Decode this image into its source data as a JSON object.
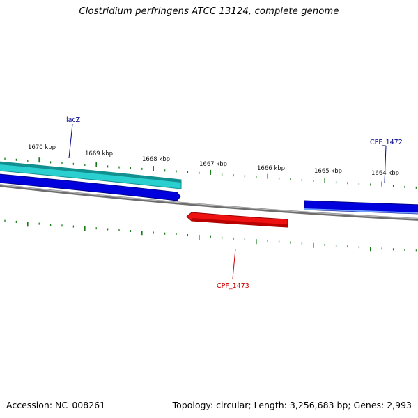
{
  "title": "Clostridium perfringens ATCC 13124, complete genome",
  "footer": {
    "accession": "Accession: NC_008261",
    "summary": "Topology: circular; Length: 3,256,683 bp; Genes: 2,993"
  },
  "scale": {
    "tick_color": "#1a7a1a",
    "labels": [
      "1670 kbp",
      "1669 kbp",
      "1668 kbp",
      "1667 kbp",
      "1666 kbp",
      "1665 kbp",
      "1664 kbp"
    ]
  },
  "genes": [
    {
      "name": "lacZ",
      "strand": "forward",
      "label_color": "#00008b",
      "fill": "#2ad0d0",
      "edge": "#128f8f"
    },
    {
      "name": "CPF_1472",
      "strand": "forward",
      "label_color": "#00008b",
      "fill": "#0000dd",
      "edge": "#000088"
    },
    {
      "name": "CPF_1473",
      "strand": "reverse",
      "label_color": "#cc0000",
      "fill": "#ee1111",
      "edge": "#990000"
    }
  ],
  "colors": {
    "backbone": "#888888",
    "forward_gene": "#0000dd",
    "lacz_gene": "#2ad0d0",
    "reverse_gene": "#ee1111"
  }
}
